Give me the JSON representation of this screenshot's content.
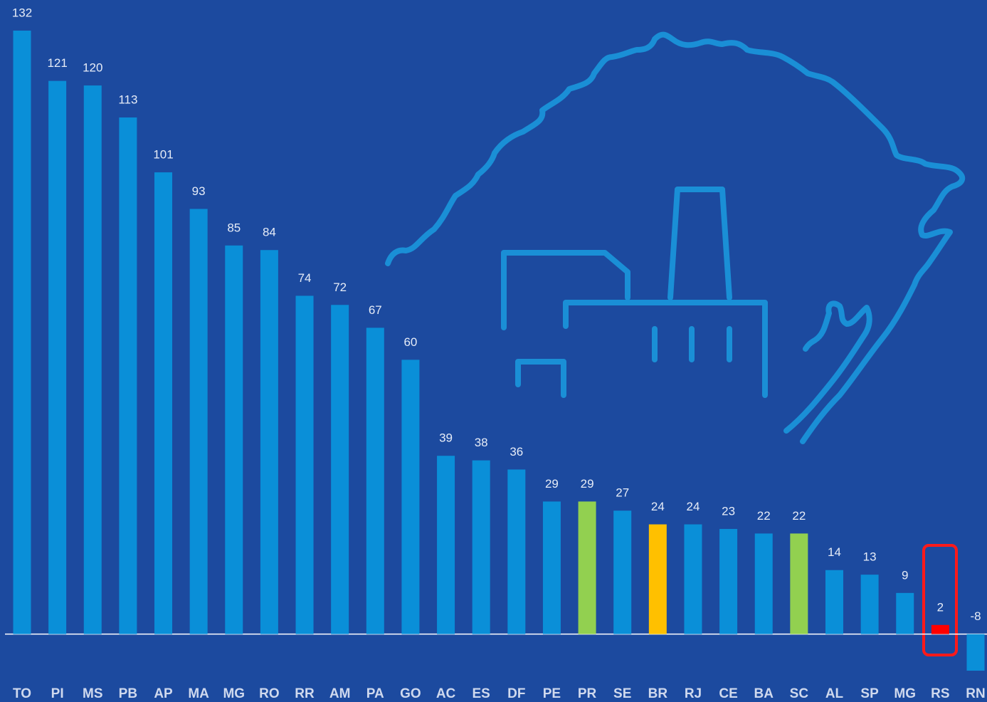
{
  "chart_data": {
    "type": "bar",
    "categories": [
      "TO",
      "PI",
      "MS",
      "PB",
      "AP",
      "MA",
      "MG",
      "RO",
      "RR",
      "AM",
      "PA",
      "GO",
      "AC",
      "ES",
      "DF",
      "PE",
      "PR",
      "SE",
      "BR",
      "RJ",
      "CE",
      "BA",
      "SC",
      "AL",
      "SP",
      "MG",
      "RS",
      "RN"
    ],
    "values": [
      132,
      121,
      120,
      113,
      101,
      93,
      85,
      84,
      74,
      72,
      67,
      60,
      39,
      38,
      36,
      29,
      29,
      27,
      24,
      24,
      23,
      22,
      22,
      14,
      13,
      9,
      2,
      -8
    ],
    "colors": [
      "#0a8fd8",
      "#0a8fd8",
      "#0a8fd8",
      "#0a8fd8",
      "#0a8fd8",
      "#0a8fd8",
      "#0a8fd8",
      "#0a8fd8",
      "#0a8fd8",
      "#0a8fd8",
      "#0a8fd8",
      "#0a8fd8",
      "#0a8fd8",
      "#0a8fd8",
      "#0a8fd8",
      "#0a8fd8",
      "#92d050",
      "#0a8fd8",
      "#ffc000",
      "#0a8fd8",
      "#0a8fd8",
      "#0a8fd8",
      "#92d050",
      "#0a8fd8",
      "#0a8fd8",
      "#0a8fd8",
      "#ff0000",
      "#0a8fd8"
    ]
  }
}
